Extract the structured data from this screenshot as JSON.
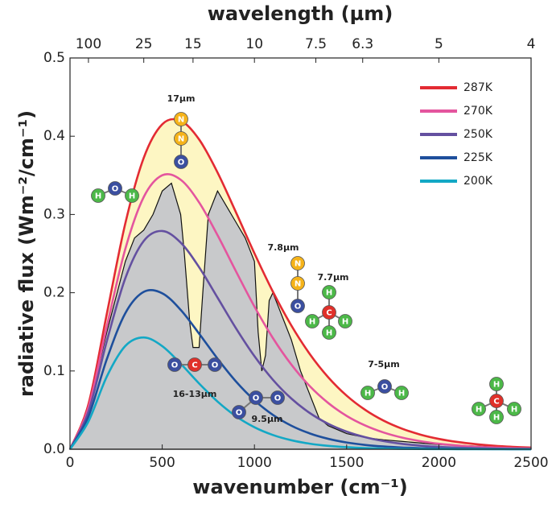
{
  "chart_data": {
    "type": "line",
    "x_label": "wavenumber (cm⁻¹)",
    "y_label": "radiative flux (Wm⁻²/cm⁻¹)",
    "x2_label": "wavelength (µm)",
    "xlim": [
      0,
      2500
    ],
    "ylim": [
      0,
      0.5
    ],
    "xticks": [
      0,
      500,
      1000,
      1500,
      2000,
      2500
    ],
    "yticks": [
      {
        "value": 0,
        "label": "0.0"
      },
      0.1,
      0.2,
      0.3,
      0.4,
      0.5
    ],
    "x2ticks": [
      {
        "value": 100,
        "label": "100"
      },
      {
        "value": 400,
        "label": "25"
      },
      {
        "value": 667,
        "label": "15"
      },
      {
        "value": 1000,
        "label": "10"
      },
      {
        "value": 1333,
        "label": "7.5"
      },
      {
        "value": 1587,
        "label": "6.3"
      },
      {
        "value": 2000,
        "label": "5"
      },
      {
        "value": 2500,
        "label": "4"
      }
    ],
    "x": [
      0,
      100,
      200,
      300,
      400,
      500,
      600,
      700,
      800,
      900,
      1000,
      1100,
      1200,
      1300,
      1400,
      1500,
      1600,
      1700,
      1800,
      1900,
      2000,
      2100,
      2200,
      2300,
      2400,
      2500
    ],
    "series": [
      {
        "name": "287K",
        "color": "#e32b33",
        "values": [
          0,
          0.0575,
          0.1735,
          0.2887,
          0.3725,
          0.4152,
          0.4198,
          0.3959,
          0.3536,
          0.3027,
          0.2504,
          0.2014,
          0.1582,
          0.1217,
          0.092,
          0.0685,
          0.0504,
          0.0366,
          0.0263,
          0.0187,
          0.0132,
          0.0093,
          0.0065,
          0.0045,
          0.0031,
          0.0021
        ]
      },
      {
        "name": "270K",
        "color": "#e4559e",
        "values": [
          0,
          0.0532,
          0.1573,
          0.256,
          0.3224,
          0.3501,
          0.3444,
          0.3154,
          0.2735,
          0.2273,
          0.1823,
          0.1421,
          0.1082,
          0.0806,
          0.0591,
          0.0426,
          0.0304,
          0.0214,
          0.0149,
          0.0103,
          0.007,
          0.0048,
          0.0032,
          0.0022,
          0.0014,
          0.001
        ]
      },
      {
        "name": "250K",
        "color": "#6450a0",
        "values": [
          0,
          0.0481,
          0.1385,
          0.2186,
          0.2662,
          0.2789,
          0.2641,
          0.2326,
          0.1937,
          0.1545,
          0.1189,
          0.0888,
          0.0648,
          0.0463,
          0.0325,
          0.0225,
          0.0154,
          0.0104,
          0.0069,
          0.0046,
          0.003,
          0.002,
          0.0013,
          0.0008,
          0.0005,
          0.0003
        ]
      },
      {
        "name": "225K",
        "color": "#1e4f9c",
        "values": [
          0,
          0.0418,
          0.1154,
          0.1739,
          0.2011,
          0.1993,
          0.1781,
          0.1477,
          0.1157,
          0.0866,
          0.0626,
          0.0439,
          0.0301,
          0.0202,
          0.0133,
          0.0086,
          0.0055,
          0.0035,
          0.0022,
          0.0014,
          0.0008,
          0.0005,
          0.0003,
          0.0002,
          0.0001,
          0.0001
        ]
      },
      {
        "name": "200K",
        "color": "#13a8c5",
        "values": [
          0,
          0.0355,
          0.0931,
          0.132,
          0.1428,
          0.1318,
          0.1093,
          0.084,
          0.0609,
          0.0421,
          0.0281,
          0.0182,
          0.0115,
          0.0071,
          0.0043,
          0.0026,
          0.0015,
          0.0009,
          0.0005,
          0.0003,
          0.0002,
          0.0001,
          0.0001,
          0,
          0,
          0
        ]
      }
    ],
    "spectrum": {
      "color": "#c8c9cb",
      "x": [
        0,
        100,
        200,
        300,
        350,
        400,
        450,
        500,
        550,
        600,
        620,
        650,
        667,
        700,
        720,
        750,
        800,
        850,
        900,
        950,
        1000,
        1020,
        1040,
        1060,
        1080,
        1100,
        1150,
        1200,
        1250,
        1300,
        1350,
        1400,
        1500,
        1600,
        1700,
        1800,
        1900,
        2000,
        2100,
        2200,
        2300,
        2400,
        2500
      ],
      "values": [
        0,
        0.05,
        0.15,
        0.24,
        0.27,
        0.28,
        0.3,
        0.33,
        0.34,
        0.3,
        0.25,
        0.16,
        0.13,
        0.13,
        0.2,
        0.3,
        0.33,
        0.31,
        0.29,
        0.27,
        0.24,
        0.15,
        0.1,
        0.12,
        0.19,
        0.2,
        0.17,
        0.14,
        0.1,
        0.07,
        0.04,
        0.03,
        0.02,
        0.015,
        0.012,
        0.01,
        0.008,
        0.006,
        0.005,
        0.004,
        0.003,
        0.002,
        0.002
      ]
    },
    "annotations": [
      {
        "label": "17µm",
        "atoms": [
          "N",
          "N",
          "O"
        ]
      },
      {
        "atoms": [
          "H",
          "O",
          "H"
        ]
      },
      {
        "label": "7.8µm",
        "atoms": [
          "N",
          "N",
          "O"
        ]
      },
      {
        "label": "7.7µm",
        "atoms": [
          "H",
          "C",
          "H",
          "H",
          "H"
        ]
      },
      {
        "label": "16-13µm",
        "atoms": [
          "O",
          "C",
          "O"
        ]
      },
      {
        "label": "9.5µm",
        "atoms": [
          "O",
          "O",
          "O"
        ]
      },
      {
        "label": "7-5µm",
        "atoms": [
          "H",
          "O",
          "H"
        ]
      },
      {
        "atoms": [
          "H",
          "C",
          "H",
          "H",
          "H"
        ]
      }
    ]
  }
}
